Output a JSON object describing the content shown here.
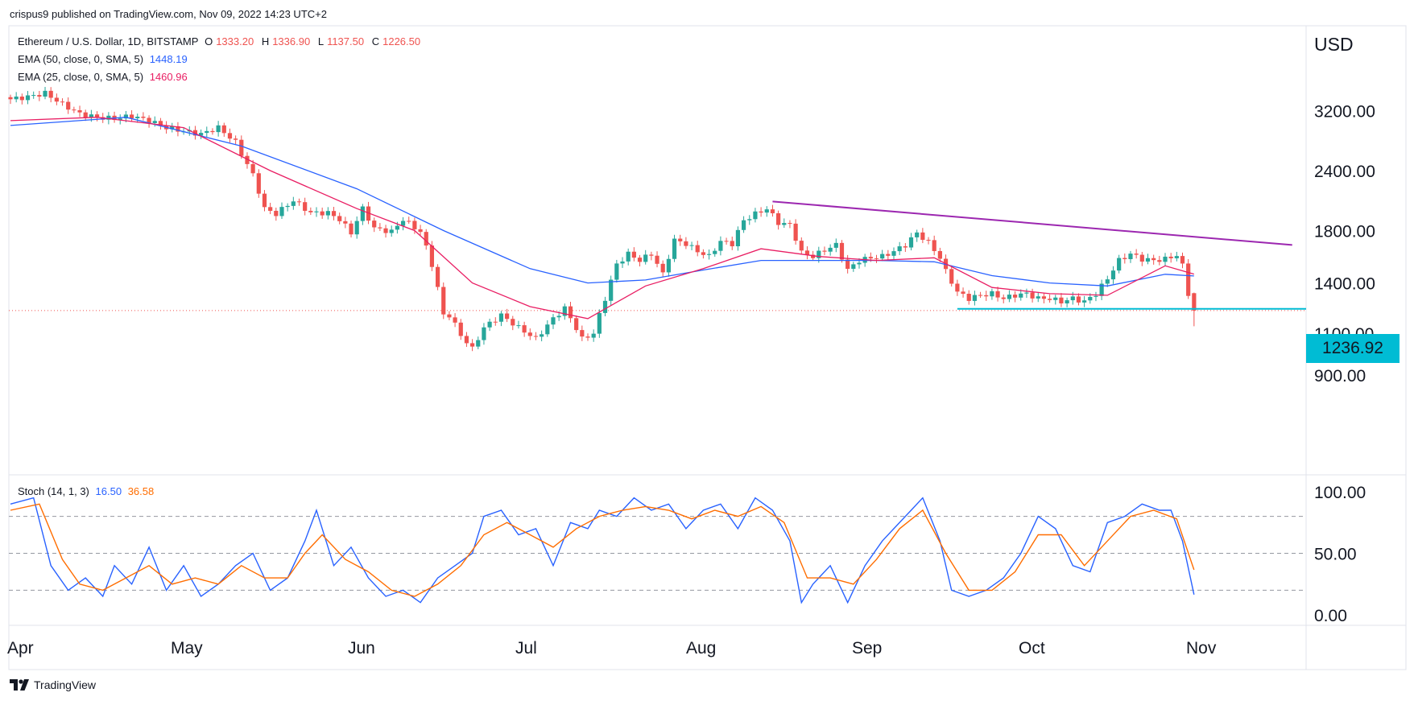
{
  "header": {
    "published": "crispus9 published on TradingView.com, Nov 09, 2022 14:23 UTC+2"
  },
  "footer": {
    "brand": "TradingView"
  },
  "colors": {
    "up": "#26a69a",
    "down": "#ef5350",
    "ema50": "#2962ff",
    "ema25": "#e91e63",
    "stoch_k": "#2962ff",
    "stoch_d": "#ff6d00",
    "trendline": "#9c27b0",
    "support": "#00bcd4",
    "price_tag_bg": "#00bcd4"
  },
  "legend": {
    "symbol": "Ethereum / U.S. Dollar, 1D, BITSTAMP",
    "open_key": "O",
    "open": "1333.20",
    "high_key": "H",
    "high": "1336.90",
    "low_key": "L",
    "low": "1137.50",
    "close_key": "C",
    "close": "1226.50",
    "ema50_label": "EMA (50, close, 0, SMA, 5)",
    "ema50_value": "1448.19",
    "ema25_label": "EMA (25, close, 0, SMA, 5)",
    "ema25_value": "1460.96",
    "stoch_label": "Stoch (14, 1, 3)",
    "stoch_k": "16.50",
    "stoch_d": "36.58"
  },
  "price_tag": "1236.92",
  "chart_data": {
    "type": "candlestick",
    "currency_label": "USD",
    "price_axis_ticks": [
      "3200.00",
      "2400.00",
      "1800.00",
      "1400.00",
      "1100.00",
      "900.00"
    ],
    "price_axis_scale": "log",
    "stoch_axis_ticks": [
      "100.00",
      "50.00",
      "0.00"
    ],
    "stoch_levels": [
      80,
      50,
      20
    ],
    "x_axis_labels": [
      "Apr",
      "May",
      "Jun",
      "Jul",
      "Aug",
      "Sep",
      "Oct",
      "Nov"
    ],
    "current_price": 1236.92,
    "trendline": {
      "from": {
        "day": 132,
        "price": 2070
      },
      "to": {
        "day": 222,
        "price": 1680
      }
    },
    "support": {
      "from": {
        "day": 164,
        "price": 1236.92
      },
      "to": {
        "day": 230,
        "price": 1236.92
      }
    },
    "price_anchors": [
      [
        0,
        3380
      ],
      [
        3,
        3420
      ],
      [
        6,
        3480
      ],
      [
        9,
        3300
      ],
      [
        12,
        3150
      ],
      [
        15,
        3100
      ],
      [
        18,
        3080
      ],
      [
        21,
        3120
      ],
      [
        24,
        3050
      ],
      [
        27,
        2950
      ],
      [
        30,
        2900
      ],
      [
        33,
        2860
      ],
      [
        36,
        2950
      ],
      [
        39,
        2750
      ],
      [
        40,
        2600
      ],
      [
        42,
        2350
      ],
      [
        44,
        2000
      ],
      [
        46,
        1950
      ],
      [
        49,
        2080
      ],
      [
        52,
        1960
      ],
      [
        55,
        1960
      ],
      [
        57,
        1900
      ],
      [
        59,
        1780
      ],
      [
        61,
        2000
      ],
      [
        63,
        1820
      ],
      [
        66,
        1790
      ],
      [
        68,
        1900
      ],
      [
        71,
        1790
      ],
      [
        73,
        1530
      ],
      [
        75,
        1200
      ],
      [
        76,
        1200
      ],
      [
        78,
        1090
      ],
      [
        80,
        1020
      ],
      [
        82,
        1130
      ],
      [
        85,
        1200
      ],
      [
        88,
        1130
      ],
      [
        91,
        1070
      ],
      [
        94,
        1180
      ],
      [
        96,
        1240
      ],
      [
        99,
        1070
      ],
      [
        101,
        1100
      ],
      [
        103,
        1300
      ],
      [
        105,
        1530
      ],
      [
        107,
        1610
      ],
      [
        109,
        1560
      ],
      [
        111,
        1610
      ],
      [
        113,
        1460
      ],
      [
        115,
        1720
      ],
      [
        117,
        1690
      ],
      [
        119,
        1630
      ],
      [
        121,
        1590
      ],
      [
        123,
        1710
      ],
      [
        125,
        1690
      ],
      [
        127,
        1890
      ],
      [
        129,
        1950
      ],
      [
        131,
        2000
      ],
      [
        133,
        1870
      ],
      [
        135,
        1850
      ],
      [
        137,
        1620
      ],
      [
        139,
        1590
      ],
      [
        141,
        1640
      ],
      [
        143,
        1680
      ],
      [
        145,
        1490
      ],
      [
        147,
        1560
      ],
      [
        149,
        1580
      ],
      [
        151,
        1590
      ],
      [
        153,
        1630
      ],
      [
        155,
        1680
      ],
      [
        157,
        1780
      ],
      [
        159,
        1700
      ],
      [
        161,
        1580
      ],
      [
        162,
        1480
      ],
      [
        164,
        1340
      ],
      [
        166,
        1300
      ],
      [
        168,
        1320
      ],
      [
        170,
        1330
      ],
      [
        172,
        1300
      ],
      [
        174,
        1320
      ],
      [
        176,
        1330
      ],
      [
        178,
        1300
      ],
      [
        180,
        1300
      ],
      [
        182,
        1280
      ],
      [
        184,
        1300
      ],
      [
        186,
        1280
      ],
      [
        188,
        1330
      ],
      [
        190,
        1430
      ],
      [
        192,
        1560
      ],
      [
        194,
        1610
      ],
      [
        196,
        1570
      ],
      [
        198,
        1560
      ],
      [
        200,
        1570
      ],
      [
        202,
        1600
      ],
      [
        203,
        1520
      ],
      [
        204,
        1330
      ],
      [
        205,
        1226.5
      ]
    ],
    "ema50_points": [
      [
        0,
        2980
      ],
      [
        20,
        3100
      ],
      [
        40,
        2700
      ],
      [
        60,
        2200
      ],
      [
        75,
        1800
      ],
      [
        90,
        1500
      ],
      [
        100,
        1400
      ],
      [
        110,
        1420
      ],
      [
        120,
        1490
      ],
      [
        130,
        1560
      ],
      [
        140,
        1560
      ],
      [
        150,
        1560
      ],
      [
        160,
        1550
      ],
      [
        170,
        1450
      ],
      [
        180,
        1400
      ],
      [
        190,
        1380
      ],
      [
        200,
        1460
      ],
      [
        205,
        1448.19
      ]
    ],
    "ema25_points": [
      [
        0,
        3050
      ],
      [
        15,
        3100
      ],
      [
        30,
        2950
      ],
      [
        45,
        2400
      ],
      [
        60,
        2000
      ],
      [
        70,
        1800
      ],
      [
        80,
        1400
      ],
      [
        90,
        1250
      ],
      [
        100,
        1180
      ],
      [
        110,
        1380
      ],
      [
        120,
        1500
      ],
      [
        130,
        1650
      ],
      [
        140,
        1590
      ],
      [
        150,
        1560
      ],
      [
        160,
        1580
      ],
      [
        170,
        1370
      ],
      [
        180,
        1330
      ],
      [
        190,
        1320
      ],
      [
        200,
        1520
      ],
      [
        205,
        1460.96
      ]
    ],
    "stoch_k_anchors": [
      [
        0,
        90
      ],
      [
        4,
        95
      ],
      [
        7,
        40
      ],
      [
        10,
        20
      ],
      [
        13,
        30
      ],
      [
        16,
        15
      ],
      [
        18,
        40
      ],
      [
        21,
        25
      ],
      [
        24,
        55
      ],
      [
        27,
        20
      ],
      [
        30,
        40
      ],
      [
        33,
        15
      ],
      [
        36,
        25
      ],
      [
        39,
        40
      ],
      [
        42,
        50
      ],
      [
        45,
        20
      ],
      [
        48,
        30
      ],
      [
        51,
        60
      ],
      [
        53,
        85
      ],
      [
        56,
        40
      ],
      [
        59,
        55
      ],
      [
        62,
        30
      ],
      [
        65,
        15
      ],
      [
        68,
        20
      ],
      [
        71,
        10
      ],
      [
        74,
        30
      ],
      [
        77,
        40
      ],
      [
        80,
        50
      ],
      [
        82,
        80
      ],
      [
        85,
        85
      ],
      [
        88,
        65
      ],
      [
        91,
        70
      ],
      [
        94,
        40
      ],
      [
        97,
        75
      ],
      [
        100,
        70
      ],
      [
        102,
        85
      ],
      [
        105,
        80
      ],
      [
        108,
        95
      ],
      [
        111,
        85
      ],
      [
        114,
        90
      ],
      [
        117,
        70
      ],
      [
        120,
        85
      ],
      [
        123,
        90
      ],
      [
        126,
        70
      ],
      [
        129,
        95
      ],
      [
        132,
        85
      ],
      [
        135,
        60
      ],
      [
        137,
        10
      ],
      [
        139,
        25
      ],
      [
        142,
        40
      ],
      [
        145,
        10
      ],
      [
        148,
        40
      ],
      [
        151,
        60
      ],
      [
        153,
        70
      ],
      [
        156,
        85
      ],
      [
        158,
        95
      ],
      [
        161,
        60
      ],
      [
        163,
        20
      ],
      [
        166,
        15
      ],
      [
        169,
        20
      ],
      [
        172,
        30
      ],
      [
        175,
        50
      ],
      [
        178,
        80
      ],
      [
        181,
        70
      ],
      [
        184,
        40
      ],
      [
        187,
        35
      ],
      [
        190,
        75
      ],
      [
        193,
        80
      ],
      [
        196,
        90
      ],
      [
        199,
        85
      ],
      [
        201,
        85
      ],
      [
        203,
        60
      ],
      [
        205,
        16.5
      ]
    ],
    "stoch_d_anchors": [
      [
        0,
        85
      ],
      [
        5,
        90
      ],
      [
        9,
        45
      ],
      [
        12,
        25
      ],
      [
        16,
        20
      ],
      [
        20,
        30
      ],
      [
        24,
        40
      ],
      [
        28,
        25
      ],
      [
        32,
        30
      ],
      [
        36,
        25
      ],
      [
        40,
        40
      ],
      [
        44,
        30
      ],
      [
        48,
        30
      ],
      [
        51,
        50
      ],
      [
        54,
        65
      ],
      [
        58,
        45
      ],
      [
        62,
        35
      ],
      [
        66,
        20
      ],
      [
        70,
        15
      ],
      [
        74,
        25
      ],
      [
        78,
        40
      ],
      [
        82,
        65
      ],
      [
        86,
        75
      ],
      [
        90,
        65
      ],
      [
        94,
        55
      ],
      [
        98,
        70
      ],
      [
        102,
        80
      ],
      [
        106,
        85
      ],
      [
        110,
        88
      ],
      [
        114,
        85
      ],
      [
        118,
        78
      ],
      [
        122,
        85
      ],
      [
        126,
        80
      ],
      [
        130,
        88
      ],
      [
        134,
        75
      ],
      [
        138,
        30
      ],
      [
        142,
        30
      ],
      [
        146,
        25
      ],
      [
        150,
        45
      ],
      [
        154,
        70
      ],
      [
        158,
        85
      ],
      [
        162,
        50
      ],
      [
        166,
        20
      ],
      [
        170,
        20
      ],
      [
        174,
        35
      ],
      [
        178,
        65
      ],
      [
        182,
        65
      ],
      [
        186,
        40
      ],
      [
        190,
        60
      ],
      [
        194,
        80
      ],
      [
        198,
        85
      ],
      [
        202,
        78
      ],
      [
        205,
        36.58
      ]
    ]
  }
}
